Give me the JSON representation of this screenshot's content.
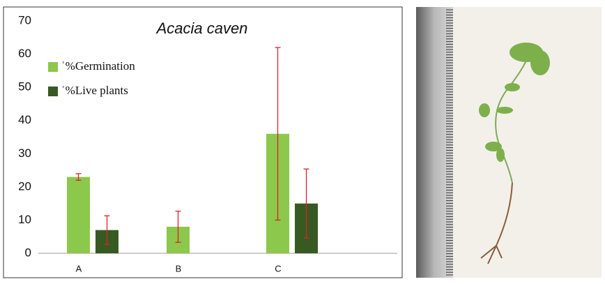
{
  "chart_data": {
    "type": "bar",
    "title": "Acacia caven",
    "categories": [
      "A",
      "B",
      "C"
    ],
    "series": [
      {
        "name": "ʿ%Germination",
        "color": "#8cc84b",
        "values": [
          23,
          8,
          36
        ],
        "errors": [
          1,
          4.7,
          26
        ]
      },
      {
        "name": "ʿ%Live plants",
        "color": "#375a23",
        "values": [
          7,
          null,
          15
        ],
        "errors": [
          4.3,
          null,
          10.4
        ]
      }
    ],
    "error_color": "#e0202a",
    "ylim": [
      0,
      70
    ],
    "yticks": [
      0,
      10,
      20,
      30,
      40,
      50,
      60,
      70
    ],
    "grid": false,
    "legend": "upper left"
  }
}
